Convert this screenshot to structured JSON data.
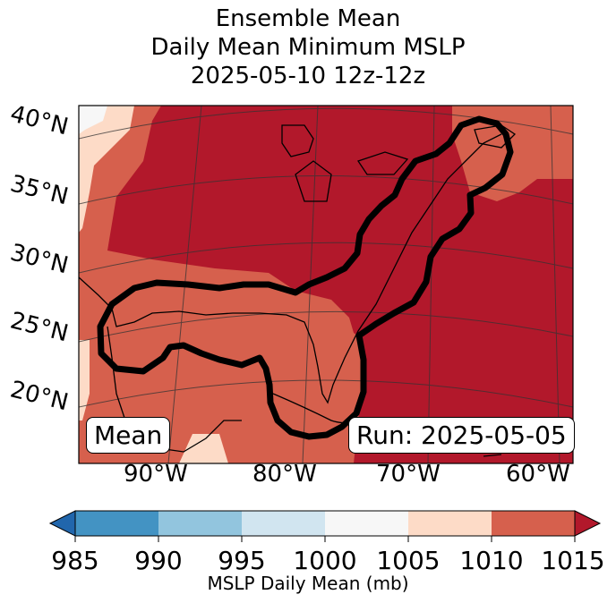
{
  "title": {
    "line1": "Ensemble Mean",
    "line2": "Daily Mean Minimum MSLP",
    "line3": "2025-05-10 12z-12z"
  },
  "map": {
    "lat_labels": [
      "40°N",
      "35°N",
      "30°N",
      "25°N",
      "20°N"
    ],
    "lon_labels": [
      "90°W",
      "80°W",
      "70°W",
      "60°W"
    ],
    "mean_label": "Mean",
    "run_label": "Run: 2025-05-05"
  },
  "colorbar": {
    "label": "MSLP Daily Mean (mb)",
    "ticks": [
      "985",
      "990",
      "995",
      "1000",
      "1005",
      "1010",
      "1015"
    ],
    "colors": {
      "under": "#2166ac",
      "b985": "#4393c3",
      "b990": "#92c5de",
      "b995": "#d1e5f0",
      "b1000": "#f7f7f7",
      "b1005": "#fddbc7",
      "b1010": "#d6604d",
      "over": "#b2182b"
    }
  }
}
